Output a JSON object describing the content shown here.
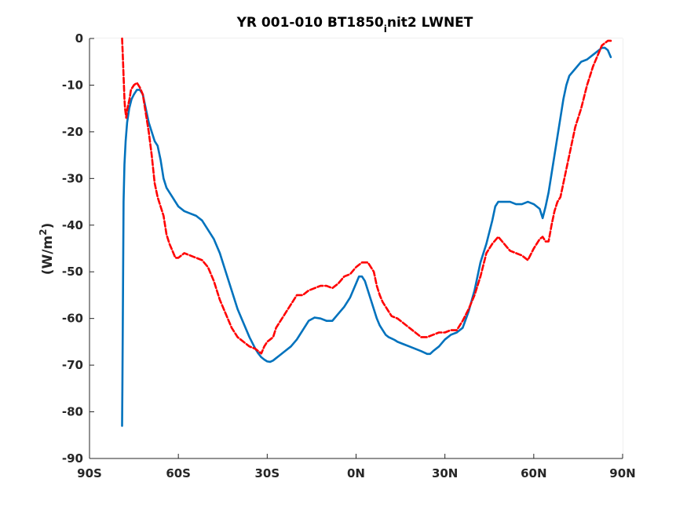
{
  "chart_data": {
    "type": "line",
    "title_main": "YR 001-010 BT1850",
    "title_sub": "i",
    "title_rest": "nit2 LWNET",
    "xlabel": "",
    "ylabel_prefix": "(W/m",
    "ylabel_sup": "2",
    "ylabel_suffix": ")",
    "xlim": [
      -90,
      90
    ],
    "ylim": [
      -90,
      0
    ],
    "grid": true,
    "xticks": [
      {
        "value": -90,
        "label": "90S"
      },
      {
        "value": -60,
        "label": "60S"
      },
      {
        "value": -30,
        "label": "30S"
      },
      {
        "value": 0,
        "label": "0N"
      },
      {
        "value": 30,
        "label": "30N"
      },
      {
        "value": 60,
        "label": "60N"
      },
      {
        "value": 90,
        "label": "90N"
      }
    ],
    "yticks": [
      {
        "value": 0,
        "label": "0"
      },
      {
        "value": -10,
        "label": "-10"
      },
      {
        "value": -20,
        "label": "-20"
      },
      {
        "value": -30,
        "label": "-30"
      },
      {
        "value": -40,
        "label": "-40"
      },
      {
        "value": -50,
        "label": "-50"
      },
      {
        "value": -60,
        "label": "-60"
      },
      {
        "value": -70,
        "label": "-70"
      },
      {
        "value": -80,
        "label": "-80"
      },
      {
        "value": -90,
        "label": "-90"
      }
    ],
    "series": [
      {
        "color": "#0072bd",
        "style": "solid",
        "x": [
          -79,
          -78.9,
          -78.7,
          -78.5,
          -78.2,
          -77.8,
          -77.3,
          -76.6,
          -75.8,
          -75,
          -74,
          -73,
          -72,
          -71,
          -70,
          -69,
          -68,
          -67,
          -66,
          -65,
          -64,
          -63,
          -62,
          -61,
          -60,
          -58,
          -56,
          -54,
          -52,
          -50,
          -48,
          -46,
          -44,
          -42,
          -40,
          -38,
          -36,
          -34,
          -33,
          -32,
          -31,
          -30,
          -29,
          -28,
          -27,
          -26,
          -25,
          -24,
          -22,
          -20,
          -18,
          -16,
          -14,
          -12,
          -10,
          -8,
          -6,
          -4,
          -2,
          0,
          1,
          2,
          3,
          4,
          5,
          6,
          7,
          8,
          9,
          10,
          11,
          12,
          13,
          14,
          16,
          18,
          20,
          22,
          24,
          25,
          26,
          28,
          30,
          32,
          34,
          36,
          38,
          40,
          42,
          44,
          46,
          47,
          48,
          50,
          52,
          54,
          56,
          58,
          60,
          62,
          63,
          64,
          65,
          66,
          67,
          68,
          69,
          70,
          71,
          72,
          74,
          76,
          78,
          80,
          82,
          83,
          84,
          85,
          86
        ],
        "y": [
          -83,
          -75,
          -55,
          -35,
          -27,
          -22,
          -18,
          -15,
          -13,
          -12,
          -11,
          -11,
          -12,
          -15,
          -18,
          -20,
          -22,
          -23,
          -26,
          -30,
          -32,
          -33,
          -34,
          -35,
          -36,
          -37,
          -37.5,
          -38,
          -39,
          -41,
          -43,
          -46,
          -50,
          -54,
          -58,
          -61,
          -64,
          -66.5,
          -67.5,
          -68.3,
          -68.8,
          -69.2,
          -69.3,
          -69,
          -68.5,
          -68,
          -67.5,
          -67,
          -66,
          -64.5,
          -62.5,
          -60.5,
          -59.8,
          -60,
          -60.5,
          -60.5,
          -59,
          -57.5,
          -55.5,
          -52.5,
          -51,
          -51,
          -52,
          -54,
          -56,
          -58,
          -60,
          -61.5,
          -62.5,
          -63.5,
          -64,
          -64.3,
          -64.6,
          -65,
          -65.5,
          -66,
          -66.5,
          -67,
          -67.6,
          -67.6,
          -67,
          -66,
          -64.5,
          -63.5,
          -63,
          -62,
          -58.5,
          -54,
          -48,
          -44,
          -39,
          -36,
          -35,
          -35,
          -35,
          -35.5,
          -35.5,
          -35,
          -35.5,
          -36.5,
          -38.5,
          -36,
          -33,
          -29,
          -25,
          -21,
          -17,
          -13,
          -10,
          -8,
          -6.5,
          -5,
          -4.5,
          -3.5,
          -2.5,
          -2,
          -2,
          -2.5,
          -4
        ]
      },
      {
        "color": "#ff0000",
        "style": "dashed",
        "x": [
          -79,
          -78.8,
          -78.5,
          -78.2,
          -78,
          -77.6,
          -77.2,
          -76.5,
          -76,
          -75,
          -74,
          -73,
          -72,
          -71,
          -70,
          -69,
          -68,
          -67,
          -66,
          -65,
          -64,
          -63,
          -62,
          -61,
          -60,
          -58,
          -56,
          -54,
          -52,
          -50,
          -48,
          -46,
          -44,
          -42,
          -40,
          -38,
          -36,
          -34,
          -32,
          -31,
          -30,
          -29,
          -28,
          -27,
          -26,
          -24,
          -22,
          -20,
          -18,
          -16,
          -14,
          -12,
          -10,
          -8,
          -6,
          -4,
          -2,
          0,
          2,
          4,
          6,
          7,
          8,
          9,
          10,
          11,
          12,
          14,
          16,
          18,
          20,
          22,
          24,
          26,
          28,
          30,
          32,
          34,
          36,
          38,
          40,
          42,
          44,
          46,
          48,
          50,
          52,
          54,
          56,
          58,
          60,
          62,
          63,
          64,
          65,
          66,
          67,
          68,
          69,
          70,
          71,
          72,
          73,
          74,
          76,
          78,
          80,
          82,
          83,
          84,
          85,
          86
        ],
        "y": [
          0,
          -3,
          -8,
          -13,
          -15,
          -17,
          -15,
          -13,
          -11,
          -10,
          -9.5,
          -10.5,
          -12,
          -16,
          -20,
          -25,
          -31,
          -34,
          -36,
          -38,
          -42,
          -44,
          -45.5,
          -47,
          -47,
          -46,
          -46.5,
          -47,
          -47.5,
          -49,
          -52,
          -56,
          -59,
          -62,
          -64,
          -65,
          -66,
          -66.5,
          -67.5,
          -66,
          -65,
          -64.5,
          -64,
          -62,
          -61,
          -59,
          -57,
          -55,
          -55,
          -54,
          -53.5,
          -53,
          -53,
          -53.5,
          -52.5,
          -51,
          -50.5,
          -49,
          -48,
          -48,
          -50,
          -53,
          -55,
          -56.5,
          -57.5,
          -58.5,
          -59.5,
          -60,
          -61,
          -62,
          -63,
          -64,
          -64,
          -63.5,
          -63,
          -63,
          -62.5,
          -62.5,
          -60.5,
          -58,
          -55,
          -51,
          -46,
          -44,
          -42.5,
          -44,
          -45.5,
          -46,
          -46.5,
          -47.5,
          -45,
          -43,
          -42.5,
          -43.5,
          -43.5,
          -40,
          -37,
          -35,
          -34,
          -31,
          -28,
          -25,
          -22,
          -19,
          -15,
          -10,
          -6,
          -3,
          -1.5,
          -1,
          -0.5,
          -0.5
        ]
      }
    ]
  }
}
